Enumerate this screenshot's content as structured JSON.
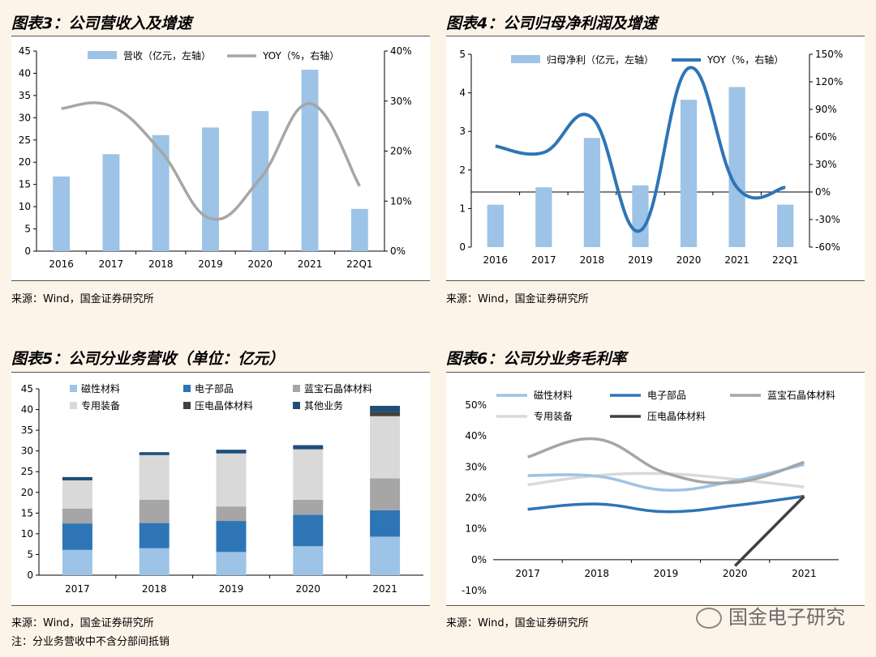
{
  "panels": [
    {
      "title": "图表3：公司营收入及增速",
      "source": "来源：Wind，国金证券研究所",
      "chart_data": {
        "type": "bar",
        "categories": [
          "2016",
          "2017",
          "2018",
          "2019",
          "2020",
          "2021",
          "22Q1"
        ],
        "series": [
          {
            "name": "营收（亿元，左轴）",
            "type": "bar",
            "axis": "left",
            "values": [
              16.8,
              21.8,
              26.1,
              27.8,
              31.5,
              40.8,
              9.5
            ],
            "color": "#9dc3e6"
          },
          {
            "name": "YOY（%，右轴）",
            "type": "line",
            "axis": "right",
            "values": [
              28.5,
              29.0,
              20.0,
              6.5,
              14.5,
              29.5,
              13.0
            ],
            "color": "#a6a6a6"
          }
        ],
        "yleft": {
          "min": 0,
          "max": 45,
          "ticks": [
            "0",
            "5",
            "10",
            "15",
            "20",
            "25",
            "30",
            "35",
            "40",
            "45"
          ]
        },
        "yright": {
          "min": 0,
          "max": 40,
          "ticks": [
            "0%",
            "10%",
            "20%",
            "30%",
            "40%"
          ]
        },
        "legend_position": "top"
      }
    },
    {
      "title": "图表4：公司归母净利润及增速",
      "source": "来源：Wind，国金证券研究所",
      "chart_data": {
        "type": "bar",
        "categories": [
          "2016",
          "2017",
          "2018",
          "2019",
          "2020",
          "2021",
          "22Q1"
        ],
        "series": [
          {
            "name": "归母净利（亿元，左轴）",
            "type": "bar",
            "axis": "left",
            "values": [
              1.1,
              1.55,
              2.83,
              1.6,
              3.82,
              4.15,
              1.1
            ],
            "color": "#9dc3e6"
          },
          {
            "name": "YOY（%，右轴）",
            "type": "line",
            "axis": "right",
            "values": [
              50,
              43,
              81,
              -42,
              135,
              5,
              5
            ],
            "color": "#2e75b6"
          }
        ],
        "yleft": {
          "min": 0,
          "max": 5,
          "ticks": [
            "0",
            "1",
            "2",
            "3",
            "4",
            "5"
          ]
        },
        "yright": {
          "min": -60,
          "max": 150,
          "ticks": [
            "-60%",
            "-30%",
            "0%",
            "30%",
            "60%",
            "90%",
            "120%",
            "150%"
          ]
        },
        "legend_position": "top"
      }
    },
    {
      "title": "图表5：公司分业务营收（单位：亿元）",
      "source": "来源：Wind，国金证券研究所",
      "note": "注：分业务营收中不含分部间抵销",
      "chart_data": {
        "type": "bar",
        "stacked": true,
        "categories": [
          "2017",
          "2018",
          "2019",
          "2020",
          "2021"
        ],
        "series": [
          {
            "name": "磁性材料",
            "values": [
              6.1,
              6.5,
              5.6,
              7.0,
              9.3
            ],
            "color": "#9dc3e6"
          },
          {
            "name": "电子部品",
            "values": [
              6.4,
              6.1,
              7.5,
              7.6,
              6.4
            ],
            "color": "#2e75b6"
          },
          {
            "name": "蓝宝石晶体材料",
            "values": [
              3.6,
              5.6,
              3.5,
              3.6,
              7.7
            ],
            "color": "#a6a6a6"
          },
          {
            "name": "专用装备",
            "values": [
              6.8,
              10.8,
              12.8,
              12.2,
              15.0
            ],
            "color": "#d9d9d9"
          },
          {
            "name": "压电晶体材料",
            "values": [
              0.0,
              0.0,
              0.0,
              0.0,
              1.1
            ],
            "color": "#404040"
          },
          {
            "name": "其他业务",
            "values": [
              0.8,
              0.7,
              0.9,
              1.0,
              1.4
            ],
            "color": "#1f4e79"
          }
        ],
        "yleft": {
          "min": 0,
          "max": 45,
          "ticks": [
            "0",
            "5",
            "10",
            "15",
            "20",
            "25",
            "30",
            "35",
            "40",
            "45"
          ]
        },
        "legend_position": "top"
      }
    },
    {
      "title": "图表6：公司分业务毛利率",
      "source": "来源：Wind，国金证券研究所",
      "chart_data": {
        "type": "line",
        "categories": [
          "2017",
          "2018",
          "2019",
          "2020",
          "2021"
        ],
        "series": [
          {
            "name": "磁性材料",
            "values": [
              27.2,
              27.0,
              22.5,
              25.5,
              30.8
            ],
            "color": "#9dc3e6"
          },
          {
            "name": "电子部品",
            "values": [
              16.3,
              18.0,
              15.5,
              17.5,
              20.5
            ],
            "color": "#2e75b6"
          },
          {
            "name": "蓝宝石晶体材料",
            "values": [
              33.2,
              39.0,
              28.0,
              25.0,
              31.5
            ],
            "color": "#a6a6a6"
          },
          {
            "name": "专用装备",
            "values": [
              24.2,
              27.2,
              27.8,
              26.0,
              23.5
            ],
            "color": "#d9d9d9"
          },
          {
            "name": "压电晶体材料",
            "values": [
              null,
              null,
              null,
              -2.0,
              20.5
            ],
            "color": "#404040"
          }
        ],
        "yleft": {
          "min": -10,
          "max": 50,
          "ticks": [
            "-10%",
            "0%",
            "10%",
            "20%",
            "30%",
            "40%",
            "50%"
          ]
        },
        "legend_position": "top"
      }
    }
  ],
  "watermark": "国金电子研究"
}
